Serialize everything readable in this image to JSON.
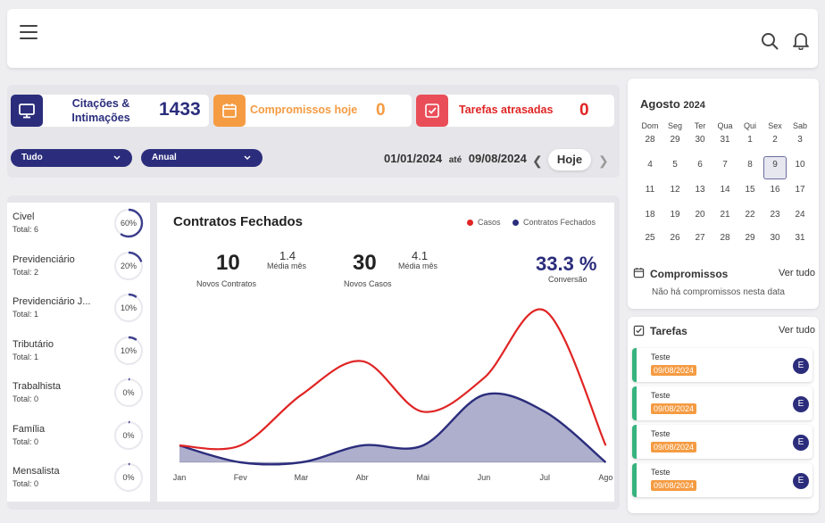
{
  "stats": {
    "citacoes": {
      "label_line1": "Citações &",
      "label_line2": "Intimações",
      "value": "1433",
      "color": "#2b2d7c"
    },
    "compromissos": {
      "label": "Compromissos hoje",
      "value": "0",
      "color": "#f59b42"
    },
    "tarefas": {
      "label": "Tarefas atrasadas",
      "value": "0",
      "color": "#e94e58"
    }
  },
  "filters": {
    "tudo": "Tudo",
    "anual": "Anual",
    "date_from": "01/01/2024",
    "ate": "até",
    "date_to": "09/08/2024",
    "hoje": "Hoje"
  },
  "categories": [
    {
      "name": "Civel",
      "total": "Total: 6",
      "pct": "60%",
      "frac": 0.6
    },
    {
      "name": "Previdenciário",
      "total": "Total: 2",
      "pct": "20%",
      "frac": 0.2
    },
    {
      "name": "Previdenciário J...",
      "total": "Total: 1",
      "pct": "10%",
      "frac": 0.1
    },
    {
      "name": "Tributário",
      "total": "Total: 1",
      "pct": "10%",
      "frac": 0.1
    },
    {
      "name": "Trabalhista",
      "total": "Total: 0",
      "pct": "0%",
      "frac": 0
    },
    {
      "name": "Família",
      "total": "Total: 0",
      "pct": "0%",
      "frac": 0
    },
    {
      "name": "Mensalista",
      "total": "Total: 0",
      "pct": "0%",
      "frac": 0
    }
  ],
  "contratos": {
    "title": "Contratos Fechados",
    "novos_contratos": "10",
    "novos_contratos_label": "Novos Contratos",
    "media_contratos": "1.4",
    "media_label": "Média mês",
    "novos_casos": "30",
    "novos_casos_label": "Novos Casos",
    "media_casos": "4.1",
    "conversao": "33.3 %",
    "conversao_label": "Conversão"
  },
  "chart_data": {
    "type": "area",
    "categories": [
      "Jan",
      "Fev",
      "Mar",
      "Abr",
      "Mai",
      "Jun",
      "Jul",
      "Ago"
    ],
    "series": [
      {
        "name": "Casos",
        "values": [
          1,
          1,
          4,
          6,
          3,
          5,
          9,
          1
        ],
        "color": "#e02424"
      },
      {
        "name": "Contratos Fechados",
        "values": [
          1,
          0,
          0,
          1,
          1,
          4,
          3,
          0
        ],
        "color": "#2b2d7c"
      }
    ],
    "ylim": [
      0,
      9
    ],
    "legend": "top-right",
    "grid": false
  },
  "calendar": {
    "month": "Agosto",
    "year": "2024",
    "dow": [
      "Dom",
      "Seg",
      "Ter",
      "Qua",
      "Qui",
      "Sex",
      "Sab"
    ],
    "weeks": [
      [
        "28",
        "29",
        "30",
        "31",
        "1",
        "2",
        "3"
      ],
      [
        "4",
        "5",
        "6",
        "7",
        "8",
        "9",
        "10"
      ],
      [
        "11",
        "12",
        "13",
        "14",
        "15",
        "16",
        "17"
      ],
      [
        "18",
        "19",
        "20",
        "21",
        "22",
        "23",
        "24"
      ],
      [
        "25",
        "26",
        "27",
        "28",
        "29",
        "30",
        "31"
      ]
    ],
    "selected": "9"
  },
  "compromissos": {
    "title": "Compromissos",
    "ver_tudo": "Ver tudo",
    "empty": "Não há compromissos nesta data"
  },
  "tarefas": {
    "title": "Tarefas",
    "ver_tudo": "Ver tudo",
    "items": [
      {
        "title": "Teste",
        "date": "09/08/2024",
        "badge": "E"
      },
      {
        "title": "Teste",
        "date": "09/08/2024",
        "badge": "E"
      },
      {
        "title": "Teste",
        "date": "09/08/2024",
        "badge": "E"
      },
      {
        "title": "Teste",
        "date": "09/08/2024",
        "badge": "E"
      }
    ]
  }
}
